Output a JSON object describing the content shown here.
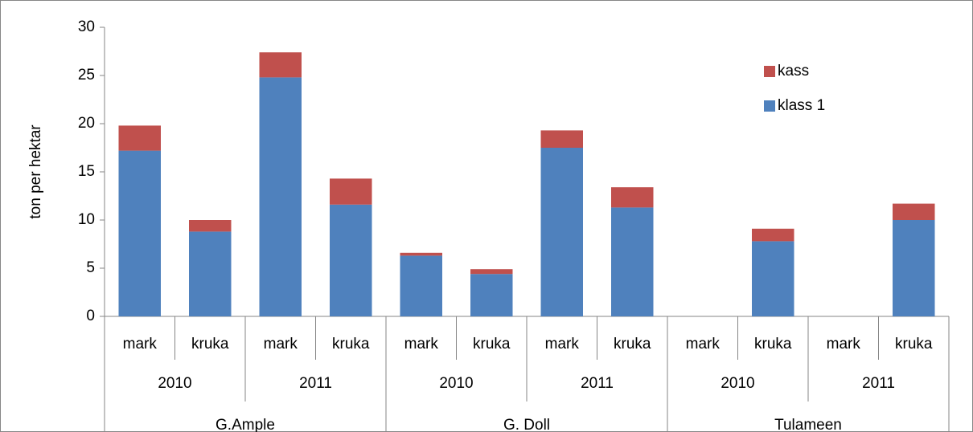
{
  "chart_data": {
    "type": "bar",
    "stacked": true,
    "y_label": "ton per hektar",
    "categories": [
      "mark",
      "kruka",
      "mark",
      "kruka",
      "mark",
      "kruka",
      "mark",
      "kruka",
      "mark",
      "kruka",
      "mark",
      "kruka"
    ],
    "years": [
      "2010",
      "2011",
      "2010",
      "2011",
      "2010",
      "2011"
    ],
    "varieties": [
      "G.Ample",
      "G. Doll",
      "Tulameen"
    ],
    "series": [
      {
        "name": "klass 1",
        "color": "#4f81bd",
        "values": [
          17.2,
          8.8,
          24.8,
          11.6,
          6.3,
          4.4,
          17.5,
          11.3,
          null,
          7.8,
          null,
          10.0
        ]
      },
      {
        "name": "kass",
        "color": "#c0504d",
        "values": [
          2.6,
          1.2,
          2.6,
          2.7,
          0.3,
          0.5,
          1.8,
          2.1,
          null,
          1.3,
          null,
          1.7
        ]
      }
    ],
    "ylim": [
      0,
      30
    ],
    "yticks": [
      0,
      5,
      10,
      15,
      20,
      25,
      30
    ],
    "legend": "top-right",
    "legend_reversed": true
  }
}
